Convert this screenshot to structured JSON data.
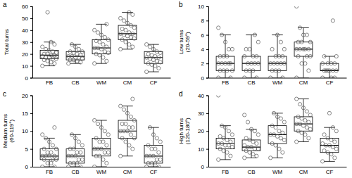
{
  "chart_data": [
    {
      "type": "box",
      "title": "a",
      "y_label": [
        "Total turns"
      ],
      "categories": [
        "FB",
        "CB",
        "WM",
        "CM",
        "CF"
      ],
      "ylim": [
        0,
        60
      ],
      "yticks": [
        0,
        10,
        20,
        30,
        40,
        50,
        60
      ],
      "grid": false,
      "values": [
        [
          10,
          12,
          13,
          14,
          15,
          16,
          16,
          17,
          17,
          18,
          19,
          19,
          20,
          20,
          21,
          22,
          23,
          24,
          26,
          28,
          30,
          55
        ],
        [
          12,
          13,
          14,
          15,
          15,
          16,
          17,
          17,
          18,
          18,
          19,
          20,
          21,
          22,
          22,
          24,
          26,
          28
        ],
        [
          12,
          14,
          17,
          19,
          20,
          21,
          22,
          24,
          25,
          25,
          26,
          28,
          30,
          31,
          32,
          34,
          36,
          38,
          40,
          45
        ],
        [
          24,
          26,
          28,
          30,
          32,
          33,
          34,
          35,
          36,
          37,
          37,
          38,
          40,
          41,
          42,
          44,
          46,
          48,
          50,
          53,
          55
        ],
        [
          5,
          8,
          10,
          11,
          12,
          13,
          14,
          15,
          16,
          17,
          17,
          18,
          19,
          20,
          21,
          22,
          24,
          26,
          28
        ]
      ],
      "boxes": [
        {
          "min": 10,
          "q1": 16,
          "median": 19,
          "q3": 23,
          "max": 30
        },
        {
          "min": 12,
          "q1": 15,
          "median": 18,
          "q3": 22,
          "max": 28
        },
        {
          "min": 12,
          "q1": 20,
          "median": 25,
          "q3": 32,
          "max": 45
        },
        {
          "min": 24,
          "q1": 32,
          "median": 37,
          "q3": 44,
          "max": 55
        },
        {
          "min": 5,
          "q1": 12,
          "median": 17,
          "q3": 22,
          "max": 28
        }
      ]
    },
    {
      "type": "box",
      "title": "b",
      "y_label": [
        "Low turns",
        "(20-59°)"
      ],
      "categories": [
        "FB",
        "CB",
        "WM",
        "CM",
        "CF"
      ],
      "ylim": [
        0,
        10
      ],
      "yticks": [
        0,
        2,
        4,
        6,
        8,
        10
      ],
      "grid": false,
      "values": [
        [
          0,
          0,
          1,
          1,
          1,
          1,
          2,
          2,
          2,
          2,
          2,
          3,
          3,
          3,
          4,
          4,
          5,
          6,
          7
        ],
        [
          0,
          0,
          1,
          1,
          1,
          2,
          2,
          2,
          2,
          3,
          3,
          3,
          4,
          4,
          5,
          6
        ],
        [
          0,
          0,
          1,
          1,
          1,
          2,
          2,
          2,
          2,
          2,
          3,
          3,
          3,
          4,
          4,
          5,
          6
        ],
        [
          0,
          1,
          2,
          2,
          3,
          3,
          3,
          4,
          4,
          4,
          4,
          4,
          5,
          5,
          5,
          6,
          6,
          7,
          10
        ],
        [
          0,
          0,
          0,
          1,
          1,
          1,
          1,
          1,
          1,
          2,
          2,
          2,
          2,
          3,
          3,
          8
        ]
      ],
      "boxes": [
        {
          "min": 0,
          "q1": 1,
          "median": 2,
          "q3": 3,
          "max": 6
        },
        {
          "min": 0,
          "q1": 1,
          "median": 2,
          "q3": 3,
          "max": 6
        },
        {
          "min": 0,
          "q1": 1,
          "median": 2,
          "q3": 3,
          "max": 6
        },
        {
          "min": 0,
          "q1": 3,
          "median": 4,
          "q3": 5,
          "max": 7
        },
        {
          "min": 0,
          "q1": 1,
          "median": 1,
          "q3": 2,
          "max": 3
        }
      ]
    },
    {
      "type": "box",
      "title": "c",
      "y_label": [
        "Medium turns",
        "(60-119°)"
      ],
      "categories": [
        "FB",
        "CB",
        "WM",
        "CM",
        "CF"
      ],
      "ylim": [
        0,
        20
      ],
      "yticks": [
        0,
        5,
        10,
        15,
        20
      ],
      "grid": false,
      "values": [
        [
          0,
          0,
          1,
          1,
          2,
          2,
          2,
          3,
          3,
          3,
          3,
          4,
          4,
          5,
          5,
          6,
          7,
          8,
          9,
          11
        ],
        [
          0,
          0,
          1,
          1,
          1,
          2,
          2,
          3,
          3,
          3,
          4,
          4,
          5,
          5,
          6,
          7,
          8,
          9
        ],
        [
          0,
          1,
          2,
          3,
          3,
          4,
          4,
          5,
          5,
          5,
          6,
          7,
          7,
          8,
          9,
          10,
          11,
          12,
          13
        ],
        [
          3,
          5,
          6,
          7,
          8,
          8,
          9,
          10,
          10,
          10,
          11,
          11,
          12,
          12,
          13,
          14,
          15,
          16,
          17,
          19
        ],
        [
          0,
          0,
          1,
          1,
          1,
          2,
          2,
          3,
          3,
          3,
          4,
          5,
          5,
          6,
          7,
          8,
          9,
          11
        ]
      ],
      "boxes": [
        {
          "min": 0,
          "q1": 2,
          "median": 3,
          "q3": 5,
          "max": 8
        },
        {
          "min": 0,
          "q1": 1,
          "median": 3,
          "q3": 5,
          "max": 9
        },
        {
          "min": 0,
          "q1": 3,
          "median": 5,
          "q3": 8,
          "max": 13
        },
        {
          "min": 3,
          "q1": 8,
          "median": 10,
          "q3": 13,
          "max": 17
        },
        {
          "min": 0,
          "q1": 1,
          "median": 3,
          "q3": 6,
          "max": 11
        }
      ]
    },
    {
      "type": "box",
      "title": "d",
      "y_label": [
        "High turns",
        "(120-180°)"
      ],
      "categories": [
        "FB",
        "CB",
        "WM",
        "CM",
        "CF"
      ],
      "ylim": [
        0,
        40
      ],
      "yticks": [
        0,
        10,
        20,
        30,
        40
      ],
      "grid": false,
      "values": [
        [
          4,
          6,
          8,
          9,
          10,
          11,
          12,
          12,
          13,
          13,
          14,
          15,
          16,
          17,
          18,
          20,
          22,
          23,
          40
        ],
        [
          5,
          6,
          7,
          8,
          9,
          10,
          10,
          11,
          11,
          12,
          13,
          14,
          15,
          16,
          18,
          20,
          21,
          25,
          29
        ],
        [
          5,
          8,
          10,
          12,
          13,
          15,
          16,
          17,
          18,
          18,
          19,
          20,
          22,
          23,
          25,
          27,
          28,
          30
        ],
        [
          14,
          16,
          18,
          19,
          20,
          21,
          22,
          23,
          24,
          24,
          25,
          26,
          27,
          28,
          29,
          31,
          33,
          35,
          38
        ],
        [
          3,
          5,
          7,
          8,
          9,
          10,
          11,
          12,
          12,
          13,
          14,
          15,
          16,
          18,
          20,
          22,
          30
        ]
      ],
      "boxes": [
        {
          "min": 4,
          "q1": 10,
          "median": 13,
          "q3": 16,
          "max": 23
        },
        {
          "min": 5,
          "q1": 9,
          "median": 11,
          "q3": 15,
          "max": 21
        },
        {
          "min": 5,
          "q1": 13,
          "median": 18,
          "q3": 23,
          "max": 30
        },
        {
          "min": 14,
          "q1": 20,
          "median": 24,
          "q3": 28,
          "max": 38
        },
        {
          "min": 3,
          "q1": 8,
          "median": 12,
          "q3": 16,
          "max": 22
        }
      ]
    }
  ]
}
